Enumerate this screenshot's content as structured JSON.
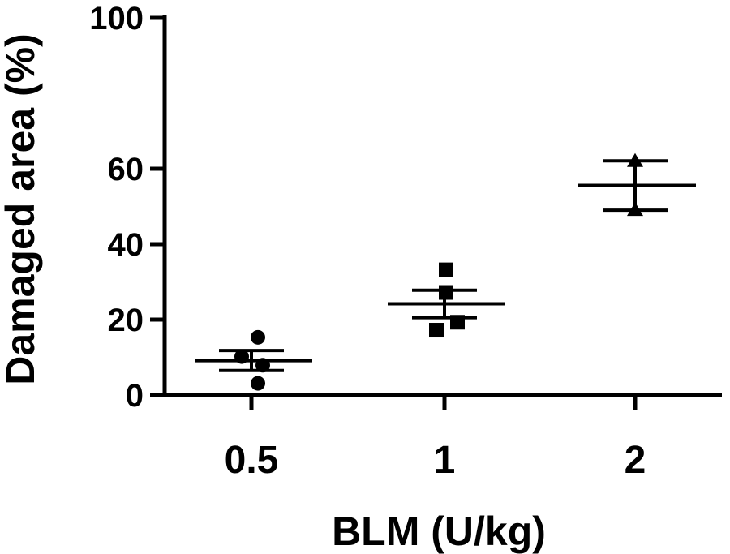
{
  "chart_data": {
    "type": "scatter",
    "title": "",
    "xlabel": "BLM (U/kg)",
    "ylabel": "Damaged area (%)",
    "categories": [
      "0.5",
      "1",
      "2"
    ],
    "ylim": [
      0,
      100
    ],
    "y_ticks": [
      0,
      20,
      40,
      60,
      100
    ],
    "y_tick_labels": [
      "0",
      "20",
      "40",
      "60",
      "100"
    ],
    "groups": [
      {
        "category": "0.5",
        "marker": "circle",
        "points": [
          15.3,
          10.2,
          7.9,
          3.1
        ],
        "mean": 9.1,
        "sem_upper": 11.8,
        "sem_lower": 6.5
      },
      {
        "category": "1",
        "marker": "square",
        "points": [
          33.2,
          27.2,
          19.3,
          17.2
        ],
        "mean": 24.2,
        "sem_upper": 27.8,
        "sem_lower": 20.5
      },
      {
        "category": "2",
        "marker": "triangle",
        "points": [
          62.0,
          49.0
        ],
        "mean": 55.6,
        "sem_upper": 62.1,
        "sem_lower": 49.0
      }
    ],
    "grid": false,
    "legend": "none",
    "color": "#000000"
  }
}
